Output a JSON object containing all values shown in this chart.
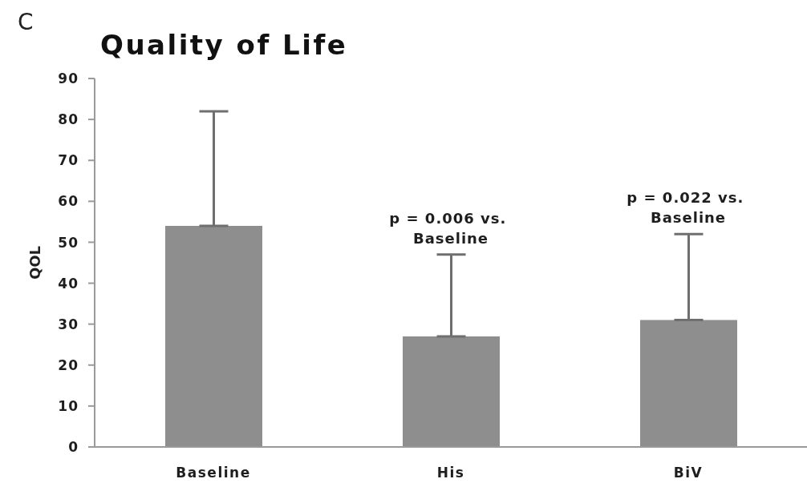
{
  "chart_data": {
    "type": "bar",
    "title": "Quality of Life",
    "ylabel": "QOL",
    "categories": [
      "Baseline",
      "His",
      "BiV"
    ],
    "values": [
      54,
      27,
      31
    ],
    "errors": [
      [
        54,
        82
      ],
      [
        27,
        47
      ],
      [
        31,
        52
      ]
    ],
    "color": "#8e8e8e",
    "ylim": [
      0,
      90
    ],
    "yticks": [
      0,
      10,
      20,
      30,
      40,
      50,
      60,
      70,
      80,
      90
    ],
    "annotations": [
      "C",
      {
        "text": "p = 0.006 vs. Baseline",
        "x": "His",
        "y": 47
      },
      {
        "text": "p = 0.022 vs. Baseline",
        "x": "BiV",
        "y": 52
      }
    ]
  }
}
